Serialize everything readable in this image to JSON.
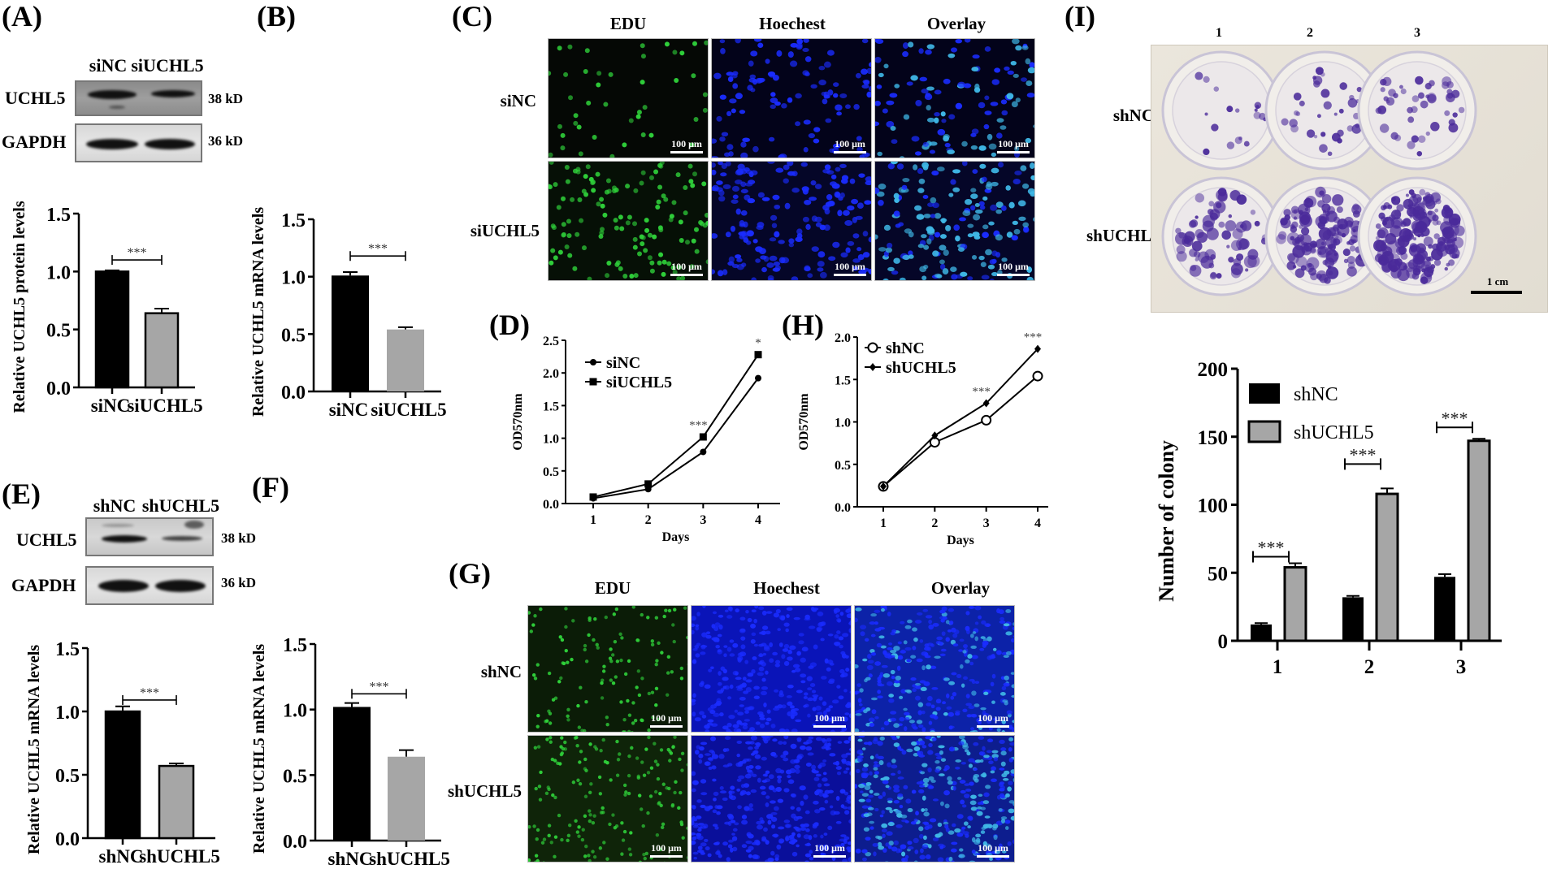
{
  "figure": {
    "panels": {
      "A": {
        "label": "(A)",
        "blot": {
          "lanes": [
            "siNC",
            "siUCHL5"
          ],
          "rows": [
            {
              "protein": "UCHL5",
              "size": "38 kD"
            },
            {
              "protein": "GAPDH",
              "size": "36 kD"
            }
          ]
        }
      },
      "B": {
        "label": "(B)"
      },
      "C": {
        "label": "(C)",
        "columns": [
          "EDU",
          "Hoechest",
          "Overlay"
        ],
        "rows": [
          "siNC",
          "siUCHL5"
        ],
        "scale_bar": "100 μm"
      },
      "D": {
        "label": "(D)"
      },
      "E": {
        "label": "(E)",
        "blot": {
          "lanes": [
            "shNC",
            "shUCHL5"
          ],
          "rows": [
            {
              "protein": "UCHL5",
              "size": "38 kD"
            },
            {
              "protein": "GAPDH",
              "size": "36 kD"
            }
          ]
        }
      },
      "F": {
        "label": "(F)"
      },
      "G": {
        "label": "(G)",
        "columns": [
          "EDU",
          "Hoechest",
          "Overlay"
        ],
        "rows": [
          "shNC",
          "shUCHL5"
        ],
        "scale_bar": "100 μm"
      },
      "H": {
        "label": "(H)"
      },
      "I": {
        "label": "(I)",
        "plate": {
          "columns": [
            "1",
            "2",
            "3"
          ],
          "rows": [
            "shNC",
            "shUCHL5"
          ],
          "scale_bar": "1 cm"
        }
      }
    }
  },
  "colors": {
    "bar_control": "#000000",
    "bar_knockdown": "#a6a6a6",
    "edu_green": "#2fd13a",
    "hoechst_blue": "#1a2cff",
    "overlay_cyan": "#3fb7e6",
    "crystal_violet": "#4a2a9a",
    "plate_bg": "#e7e1d6"
  },
  "chart_data": [
    {
      "id": "A",
      "type": "bar",
      "title": "",
      "categories": [
        "siNC",
        "siUCHL5"
      ],
      "values": [
        1.0,
        0.64
      ],
      "errors": [
        0.01,
        0.04
      ],
      "ylabel": "Relative UCHL5 protein levels",
      "xlabel": "",
      "ylim": [
        0,
        1.5
      ],
      "yticks": [
        "0.0",
        "0.5",
        "1.0",
        "1.5"
      ],
      "annotations": [
        {
          "text": "***",
          "between": [
            "siNC",
            "siUCHL5"
          ]
        }
      ],
      "grid": false
    },
    {
      "id": "B",
      "type": "bar",
      "title": "",
      "categories": [
        "siNC",
        "siUCHL5"
      ],
      "values": [
        1.01,
        0.54
      ],
      "errors": [
        0.03,
        0.02
      ],
      "ylabel": "Relative UCHL5 mRNA levels",
      "xlabel": "",
      "ylim": [
        0,
        1.5
      ],
      "yticks": [
        "0.0",
        "0.5",
        "1.0",
        "1.5"
      ],
      "annotations": [
        {
          "text": "***",
          "between": [
            "siNC",
            "siUCHL5"
          ]
        }
      ],
      "grid": false
    },
    {
      "id": "D",
      "type": "line",
      "title": "",
      "x": [
        1,
        2,
        3,
        4
      ],
      "xticks": [
        "1",
        "2",
        "3",
        "4"
      ],
      "series": [
        {
          "name": "siNC",
          "marker": "circle-filled",
          "values": [
            0.08,
            0.22,
            0.79,
            1.92
          ]
        },
        {
          "name": "siUCHL5",
          "marker": "square-filled",
          "values": [
            0.1,
            0.3,
            1.02,
            2.28
          ]
        }
      ],
      "xlabel": "Days",
      "ylabel": "OD570nm",
      "ylim": [
        0,
        2.5
      ],
      "yticks": [
        "0.0",
        "0.5",
        "1.0",
        "1.5",
        "2.0",
        "2.5"
      ],
      "annotations": [
        {
          "x": 3,
          "text": "***"
        },
        {
          "x": 4,
          "text": "*"
        }
      ],
      "legend_position": "top-left",
      "grid": false
    },
    {
      "id": "E",
      "type": "bar",
      "title": "",
      "categories": [
        "shNC",
        "shUCHL5"
      ],
      "values": [
        1.0,
        0.57
      ],
      "errors": [
        0.04,
        0.02
      ],
      "ylabel": "Relative UCHL5 mRNA levels",
      "xlabel": "",
      "ylim": [
        0,
        1.5
      ],
      "yticks": [
        "0.0",
        "0.5",
        "1.0",
        "1.5"
      ],
      "annotations": [
        {
          "text": "***",
          "between": [
            "shNC",
            "shUCHL5"
          ]
        }
      ],
      "grid": false
    },
    {
      "id": "F",
      "type": "bar",
      "title": "",
      "categories": [
        "shNC",
        "shUCHL5"
      ],
      "values": [
        1.02,
        0.64
      ],
      "errors": [
        0.03,
        0.05
      ],
      "ylabel": "Relative UCHL5 mRNA levels",
      "xlabel": "",
      "ylim": [
        0,
        1.5
      ],
      "yticks": [
        "0.0",
        "0.5",
        "1.0",
        "1.5"
      ],
      "annotations": [
        {
          "text": "***",
          "between": [
            "shNC",
            "shUCHL5"
          ]
        }
      ],
      "grid": false
    },
    {
      "id": "H",
      "type": "line",
      "title": "",
      "x": [
        1,
        2,
        3,
        4
      ],
      "xticks": [
        "1",
        "2",
        "3",
        "4"
      ],
      "series": [
        {
          "name": "shNC",
          "marker": "circle-open",
          "values": [
            0.24,
            0.76,
            1.02,
            1.54
          ]
        },
        {
          "name": "shUCHL5",
          "marker": "diamond-filled",
          "values": [
            0.24,
            0.84,
            1.22,
            1.86
          ]
        }
      ],
      "xlabel": "Days",
      "ylabel": "OD570nm",
      "ylim": [
        0,
        2.0
      ],
      "yticks": [
        "0.0",
        "0.5",
        "1.0",
        "1.5",
        "2.0"
      ],
      "annotations": [
        {
          "x": 3,
          "text": "***"
        },
        {
          "x": 4,
          "text": "***"
        }
      ],
      "legend_position": "top-left",
      "grid": false
    },
    {
      "id": "I",
      "type": "bar",
      "title": "",
      "categories": [
        "1",
        "2",
        "3"
      ],
      "series": [
        {
          "name": "shNC",
          "values": [
            12,
            32,
            47
          ],
          "errors": [
            1,
            1,
            2
          ]
        },
        {
          "name": "shUCHL5",
          "values": [
            54,
            108,
            147
          ],
          "errors": [
            3,
            4,
            1.5
          ]
        }
      ],
      "ylabel": "Number of colony",
      "xlabel": "",
      "ylim": [
        0,
        200
      ],
      "yticks": [
        "0",
        "50",
        "100",
        "150",
        "200"
      ],
      "annotations": [
        {
          "x": "1",
          "text": "***"
        },
        {
          "x": "2",
          "text": "***"
        },
        {
          "x": "3",
          "text": "***"
        }
      ],
      "legend_position": "top-left",
      "grid": false
    }
  ]
}
